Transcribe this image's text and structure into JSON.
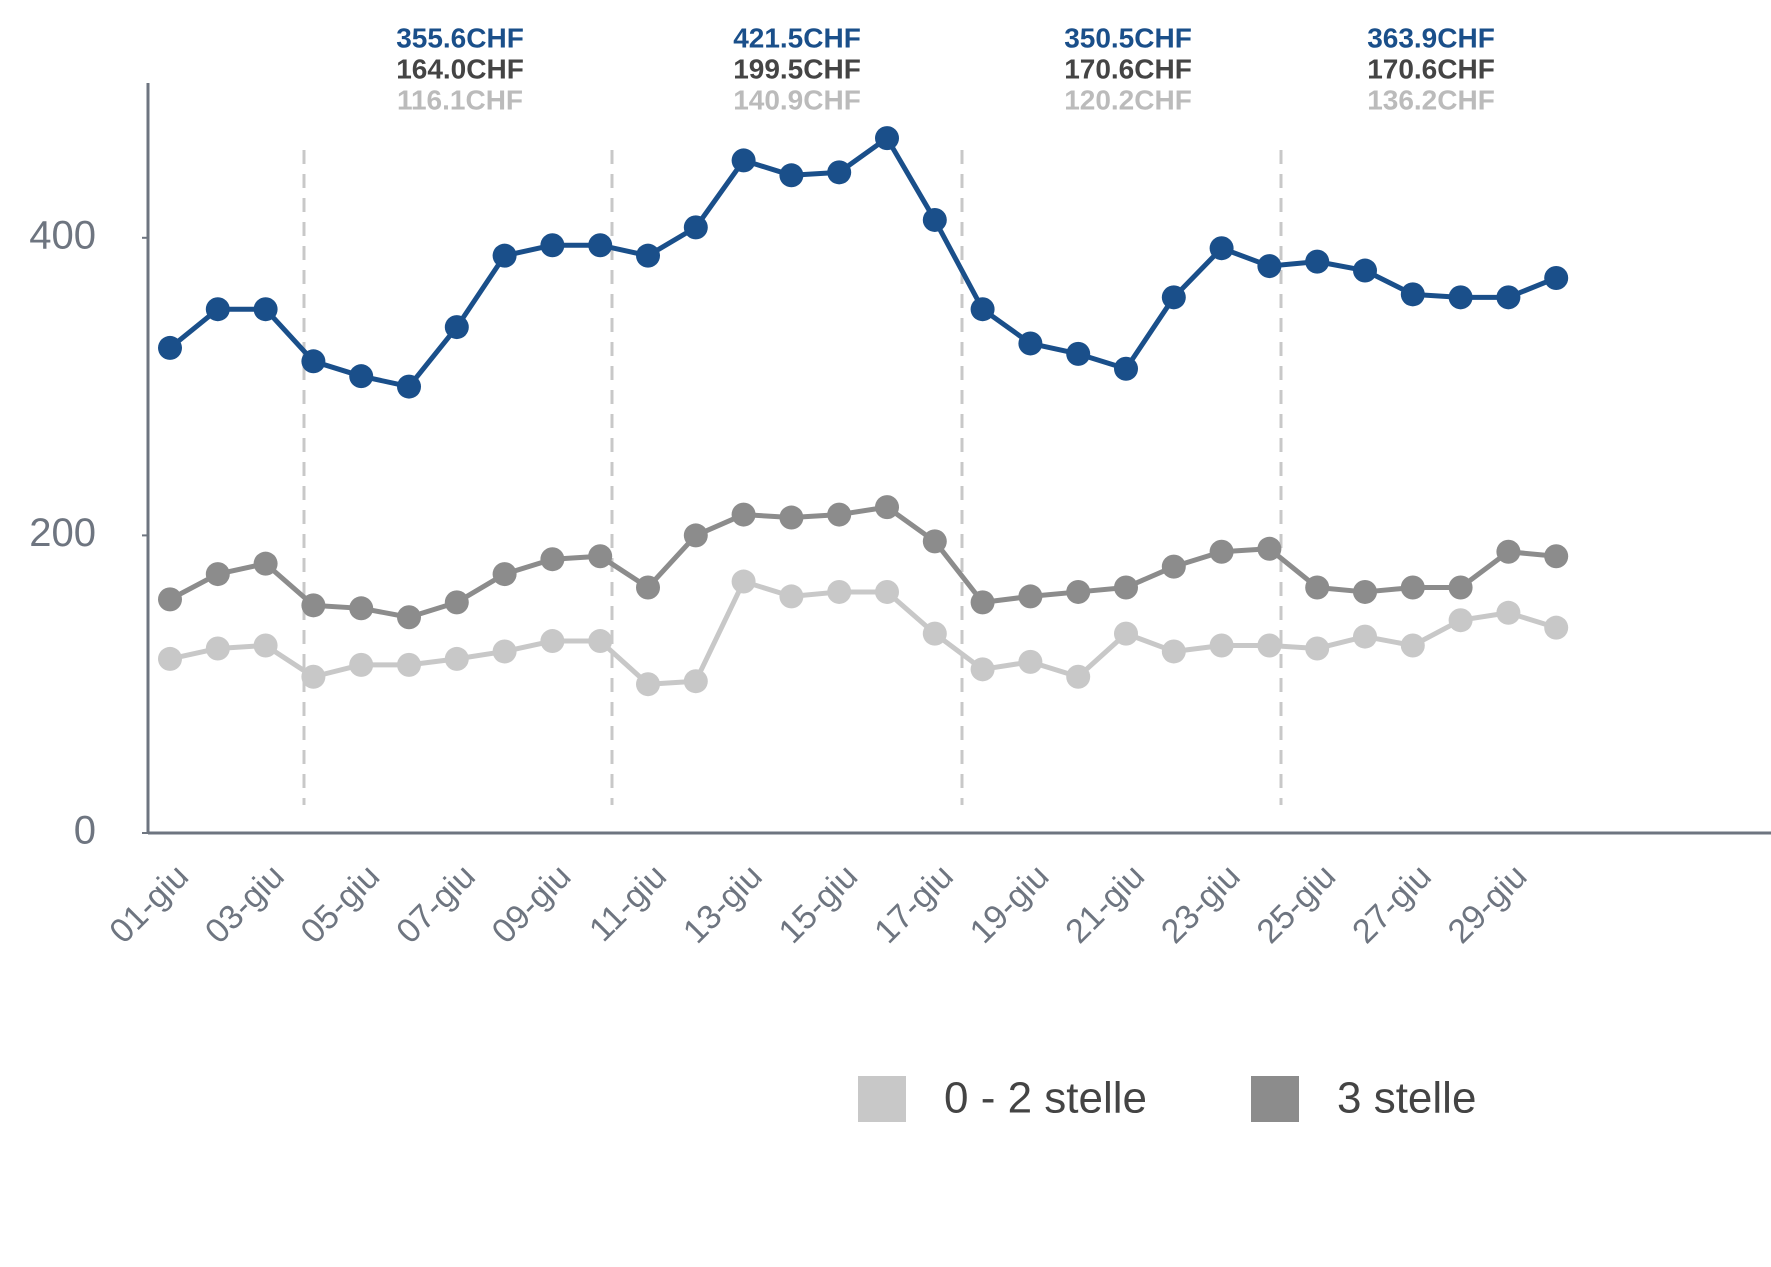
{
  "chart_data": {
    "type": "line",
    "categories": [
      "01-giu",
      null,
      "03-giu",
      null,
      "05-giu",
      null,
      "07-giu",
      null,
      "09-giu",
      null,
      "11-giu",
      null,
      "13-giu",
      null,
      "15-giu",
      null,
      "17-giu",
      null,
      "19-giu",
      null,
      "21-giu",
      null,
      "23-giu",
      null,
      "25-giu",
      null,
      "27-giu",
      null,
      "29-giu",
      null
    ],
    "series": [
      {
        "name": "0 - 2 stelle",
        "color": "#c8c8c8",
        "values": [
          117,
          124,
          126,
          105,
          113,
          113,
          117,
          122,
          129,
          129,
          100,
          102,
          169,
          159,
          162,
          162,
          134,
          110,
          115,
          105,
          134,
          122,
          126,
          126,
          124,
          132,
          126,
          143,
          148,
          138
        ]
      },
      {
        "name": "3 stelle",
        "color": "#8c8c8c",
        "values": [
          157,
          174,
          181,
          153,
          151,
          145,
          155,
          174,
          184,
          186,
          165,
          200,
          214,
          212,
          214,
          219,
          196,
          155,
          159,
          162,
          165,
          179,
          189,
          191,
          165,
          162,
          165,
          165,
          189,
          186
        ]
      },
      {
        "color": "#1a4f8a",
        "values": [
          326,
          352,
          352,
          317,
          307,
          300,
          340,
          388,
          395,
          395,
          388,
          407,
          452,
          442,
          444,
          467,
          412,
          352,
          329,
          322,
          312,
          360,
          393,
          381,
          384,
          378,
          362,
          360,
          360,
          373
        ]
      }
    ],
    "annotations": [
      [
        "355.6CHF",
        "164.0CHF",
        "116.1CHF"
      ],
      [
        "421.5CHF",
        "199.5CHF",
        "140.9CHF"
      ],
      [
        "350.5CHF",
        "170.6CHF",
        "120.2CHF"
      ],
      [
        "363.9CHF",
        "170.6CHF",
        "136.2CHF"
      ]
    ],
    "ylim": [
      0,
      500
    ],
    "yticks": [
      0,
      200,
      400
    ]
  }
}
